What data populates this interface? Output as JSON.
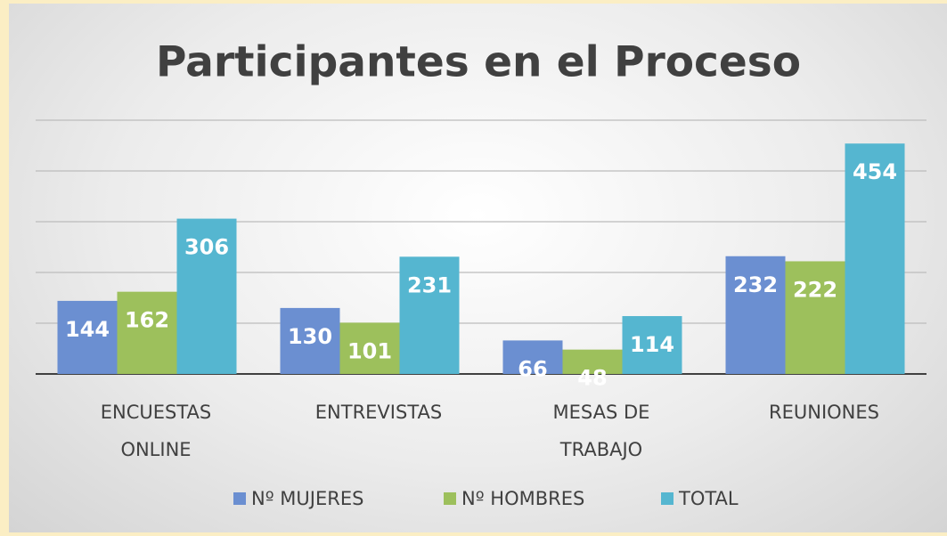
{
  "chart_data": {
    "type": "bar",
    "title": "Participantes en el Proceso",
    "categories": [
      "ENCUESTAS ONLINE",
      "ENTREVISTAS",
      "MESAS DE TRABAJO",
      "REUNIONES"
    ],
    "series": [
      {
        "name": "Nº MUJERES",
        "color": "#6b8fd1",
        "values": [
          144,
          130,
          66,
          232
        ]
      },
      {
        "name": "Nº HOMBRES",
        "color": "#9dc05c",
        "values": [
          162,
          101,
          48,
          222
        ]
      },
      {
        "name": "TOTAL",
        "color": "#55b6d0",
        "values": [
          306,
          231,
          114,
          454
        ]
      }
    ],
    "ylim": [
      0,
      500
    ],
    "yticks": [
      0,
      100,
      200,
      300,
      400,
      500
    ],
    "grid": true,
    "legend": "bottom"
  }
}
